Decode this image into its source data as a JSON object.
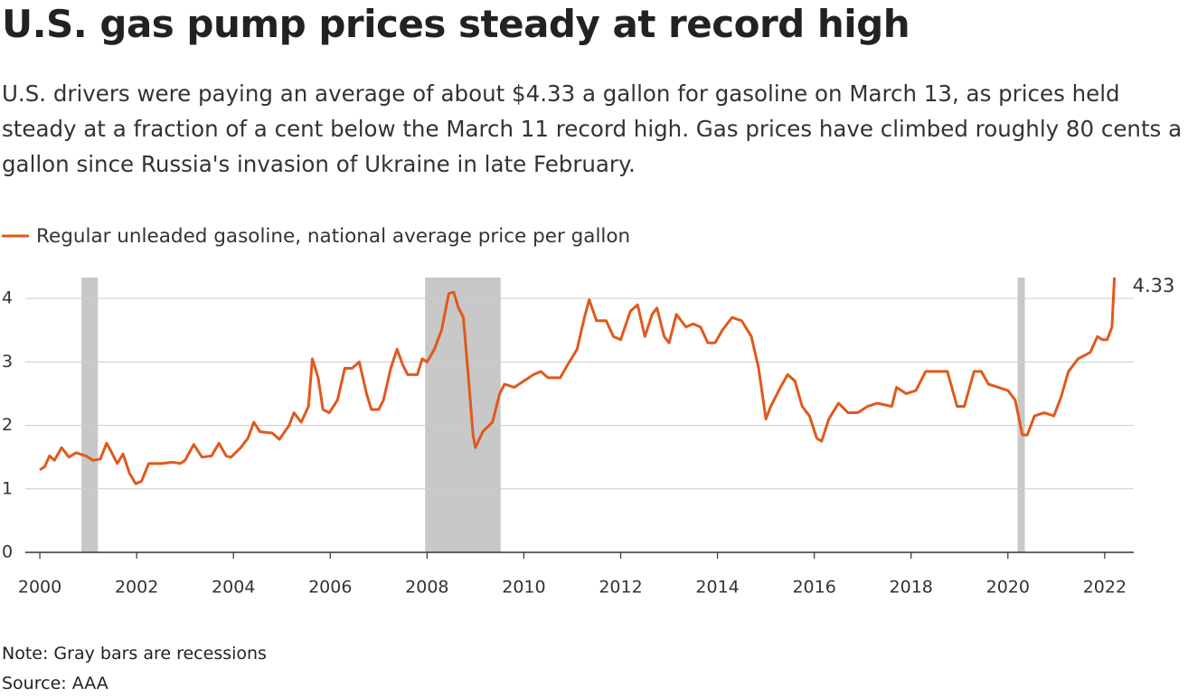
{
  "chart_data": {
    "type": "line",
    "title": "U.S. gas pump prices steady at record high",
    "subtitle": "U.S. drivers were paying an average of about $4.33 a gallon for gasoline on March 13, as prices held steady at a fraction of a cent below the March 11 record high. Gas prices have climbed roughly 80 cents a gallon since Russia's invasion of Ukraine in late February.",
    "note": "Note: Gray bars are recessions",
    "source": "Source: AAA",
    "xlim": [
      1999.7,
      2022.6
    ],
    "ylim": [
      0,
      4.33
    ],
    "xticks": [
      2000,
      2002,
      2004,
      2006,
      2008,
      2010,
      2012,
      2014,
      2016,
      2018,
      2020,
      2022
    ],
    "yticks": [
      0,
      1,
      2,
      3,
      4
    ],
    "grid": true,
    "recessions": [
      [
        2000.86,
        2001.2
      ],
      [
        2007.96,
        2009.52
      ],
      [
        2020.2,
        2020.35
      ]
    ],
    "recession_color": "#c8c8c8",
    "x": [
      2000.0,
      2000.1,
      2000.2,
      2000.3,
      2000.45,
      2000.6,
      2000.75,
      2000.95,
      2001.1,
      2001.25,
      2001.38,
      2001.5,
      2001.6,
      2001.72,
      2001.85,
      2001.98,
      2002.1,
      2002.25,
      2002.5,
      2002.75,
      2002.9,
      2003.0,
      2003.18,
      2003.35,
      2003.55,
      2003.7,
      2003.85,
      2003.95,
      2004.15,
      2004.3,
      2004.42,
      2004.55,
      2004.8,
      2004.95,
      2005.15,
      2005.25,
      2005.4,
      2005.55,
      2005.63,
      2005.75,
      2005.85,
      2005.98,
      2006.15,
      2006.3,
      2006.45,
      2006.6,
      2006.75,
      2006.85,
      2007.0,
      2007.1,
      2007.25,
      2007.38,
      2007.5,
      2007.6,
      2007.8,
      2007.9,
      2008.0,
      2008.15,
      2008.3,
      2008.45,
      2008.55,
      2008.65,
      2008.75,
      2008.85,
      2008.95,
      2009.0,
      2009.15,
      2009.35,
      2009.5,
      2009.6,
      2009.8,
      2010.0,
      2010.2,
      2010.35,
      2010.5,
      2010.75,
      2010.9,
      2011.1,
      2011.25,
      2011.35,
      2011.5,
      2011.7,
      2011.85,
      2012.0,
      2012.2,
      2012.35,
      2012.5,
      2012.65,
      2012.75,
      2012.9,
      2013.0,
      2013.15,
      2013.35,
      2013.5,
      2013.65,
      2013.8,
      2013.95,
      2014.1,
      2014.3,
      2014.5,
      2014.7,
      2014.85,
      2015.0,
      2015.1,
      2015.3,
      2015.45,
      2015.6,
      2015.75,
      2015.9,
      2016.05,
      2016.15,
      2016.3,
      2016.5,
      2016.7,
      2016.9,
      2017.1,
      2017.3,
      2017.6,
      2017.7,
      2017.9,
      2018.1,
      2018.3,
      2018.5,
      2018.75,
      2018.95,
      2019.1,
      2019.3,
      2019.45,
      2019.6,
      2019.8,
      2020.0,
      2020.15,
      2020.3,
      2020.4,
      2020.55,
      2020.75,
      2020.95,
      2021.1,
      2021.25,
      2021.45,
      2021.7,
      2021.85,
      2021.95,
      2022.05,
      2022.15,
      2022.2
    ],
    "series": [
      {
        "name": "Regular unleaded gasoline, national average price per gallon",
        "color": "#e0591c",
        "values": [
          1.3,
          1.35,
          1.52,
          1.45,
          1.65,
          1.5,
          1.57,
          1.52,
          1.45,
          1.47,
          1.72,
          1.55,
          1.4,
          1.55,
          1.25,
          1.08,
          1.12,
          1.4,
          1.4,
          1.42,
          1.4,
          1.45,
          1.7,
          1.5,
          1.52,
          1.72,
          1.52,
          1.5,
          1.65,
          1.8,
          2.05,
          1.9,
          1.88,
          1.78,
          2.0,
          2.2,
          2.05,
          2.3,
          3.05,
          2.75,
          2.25,
          2.2,
          2.4,
          2.9,
          2.9,
          3.0,
          2.5,
          2.25,
          2.25,
          2.4,
          2.9,
          3.2,
          2.95,
          2.8,
          2.8,
          3.05,
          3.0,
          3.2,
          3.5,
          4.08,
          4.1,
          3.85,
          3.7,
          2.8,
          1.85,
          1.65,
          1.9,
          2.05,
          2.5,
          2.65,
          2.6,
          2.7,
          2.8,
          2.85,
          2.75,
          2.75,
          2.95,
          3.2,
          3.7,
          3.98,
          3.65,
          3.65,
          3.4,
          3.35,
          3.8,
          3.9,
          3.4,
          3.75,
          3.85,
          3.4,
          3.3,
          3.75,
          3.55,
          3.6,
          3.55,
          3.3,
          3.3,
          3.5,
          3.7,
          3.65,
          3.4,
          2.9,
          2.1,
          2.3,
          2.6,
          2.8,
          2.7,
          2.3,
          2.15,
          1.8,
          1.75,
          2.1,
          2.35,
          2.2,
          2.2,
          2.3,
          2.35,
          2.3,
          2.6,
          2.5,
          2.55,
          2.85,
          2.85,
          2.85,
          2.3,
          2.3,
          2.85,
          2.85,
          2.65,
          2.6,
          2.55,
          2.4,
          1.85,
          1.85,
          2.15,
          2.2,
          2.15,
          2.45,
          2.85,
          3.05,
          3.15,
          3.4,
          3.35,
          3.35,
          3.55,
          4.33
        ]
      }
    ]
  }
}
